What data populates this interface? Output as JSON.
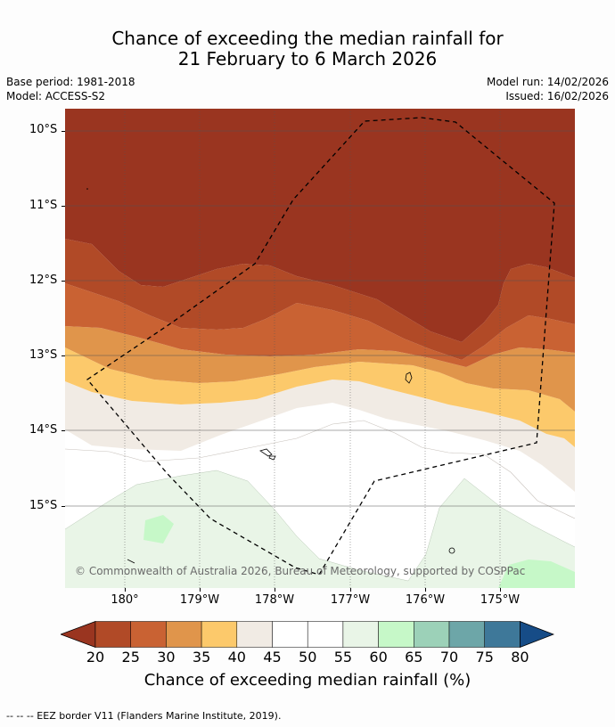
{
  "title": {
    "line1": "Chance of exceeding the median rainfall for",
    "line2": "21 February to 6 March 2026"
  },
  "meta": {
    "base_period": "Base period: 1981-2018",
    "model": "Model: ACCESS-S2",
    "model_run": "Model run: 14/02/2026",
    "issued": "Issued: 16/02/2026"
  },
  "map": {
    "lat_labels": [
      "10°S",
      "11°S",
      "12°S",
      "13°S",
      "14°S",
      "15°S"
    ],
    "lon_labels": [
      "180°",
      "179°W",
      "178°W",
      "177°W",
      "176°W",
      "175°W"
    ],
    "attribution": "© Commonwealth of Australia 2026, Bureau of Meteorology, supported by COSPPac"
  },
  "colorbar": {
    "ticks": [
      "20",
      "25",
      "30",
      "35",
      "40",
      "45",
      "50",
      "55",
      "60",
      "65",
      "70",
      "75",
      "80"
    ],
    "colors": [
      "#9a3520",
      "#b14a27",
      "#c96233",
      "#e0954b",
      "#fcc96b",
      "#f1ebe4",
      "#ffffff",
      "#ffffff",
      "#e9f5e7",
      "#c6f8c8",
      "#9cd1b8",
      "#6da6a8",
      "#3e7899",
      "#164c87"
    ],
    "title": "Chance of exceeding median rainfall (%)"
  },
  "footer": "--  --  -- EEZ border V11 (Flanders Marine Institute, 2019)."
}
